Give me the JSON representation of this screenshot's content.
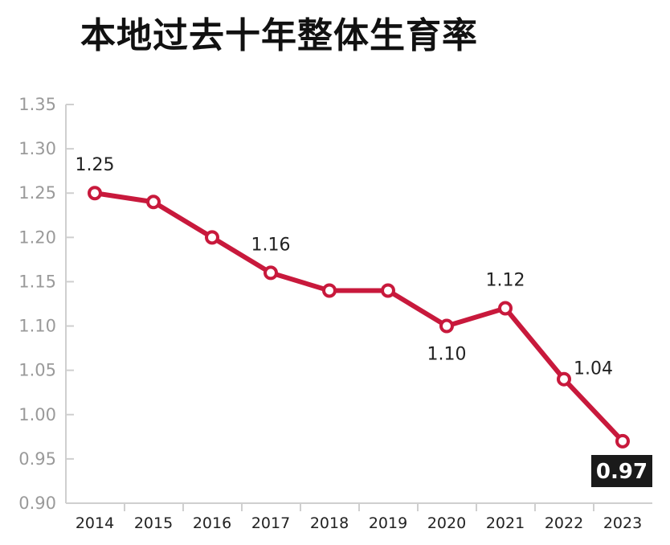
{
  "chart_data": {
    "type": "line",
    "title": "本地过去十年整体生育率",
    "categories": [
      "2014",
      "2015",
      "2016",
      "2017",
      "2018",
      "2019",
      "2020",
      "2021",
      "2022",
      "2023"
    ],
    "values": [
      1.25,
      1.24,
      1.2,
      1.16,
      1.14,
      1.14,
      1.1,
      1.12,
      1.04,
      0.97
    ],
    "yticks": [
      "1.35",
      "1.30",
      "1.25",
      "1.20",
      "1.15",
      "1.10",
      "1.05",
      "1.00",
      "0.95",
      "0.90"
    ],
    "ylim": [
      0.9,
      1.35
    ],
    "labels": [
      {
        "index": 0,
        "text": "1.25",
        "pos": "above"
      },
      {
        "index": 3,
        "text": "1.16",
        "pos": "above"
      },
      {
        "index": 6,
        "text": "1.10",
        "pos": "below"
      },
      {
        "index": 7,
        "text": "1.12",
        "pos": "above"
      },
      {
        "index": 8,
        "text": "1.04",
        "pos": "right"
      },
      {
        "index": 9,
        "text": "0.97",
        "pos": "highlight"
      }
    ],
    "grid": false,
    "line_color": "#c8193c",
    "axis_color": "#cfcfcf"
  }
}
